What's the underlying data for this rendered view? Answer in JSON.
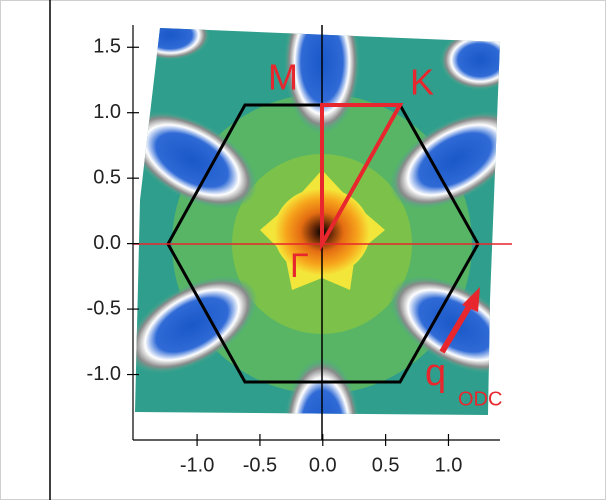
{
  "chart_data": {
    "type": "image",
    "xlim": [
      -1.51,
      1.41
    ],
    "ylim": [
      -1.5,
      1.67
    ],
    "xticks": [
      {
        "value": -1,
        "label": "-1.0"
      },
      -0.5,
      {
        "value": 0,
        "label": "0.0"
      },
      0.5,
      {
        "value": 1,
        "label": "1.0"
      }
    ],
    "yticks": [
      {
        "value": -1,
        "label": "-1.0"
      },
      -0.5,
      {
        "value": 0,
        "label": "0.0"
      },
      0.5,
      {
        "value": 1,
        "label": "1.0"
      },
      1.5
    ],
    "annotations": [
      "M",
      "K",
      "Γ",
      "q",
      "ODC"
    ]
  }
}
